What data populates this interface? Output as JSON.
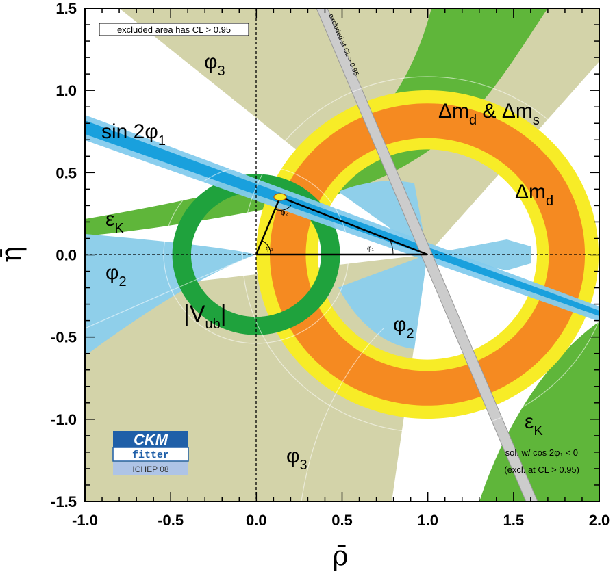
{
  "chart_data": {
    "type": "contour",
    "xlabel": "ρ̄",
    "ylabel": "η̄",
    "xlim": [
      -1.0,
      2.0
    ],
    "ylim": [
      -1.5,
      1.5
    ],
    "xticks": [
      "-1.0",
      "-0.5",
      "0.0",
      "0.5",
      "1.0",
      "1.5",
      "2.0"
    ],
    "yticks": [
      "-1.5",
      "-1.0",
      "-0.5",
      "0.0",
      "0.5",
      "1.0",
      "1.5"
    ],
    "legend_note": "excluded area has CL > 0.95",
    "logo": {
      "line1": "CKM",
      "line2": "fitter",
      "line3": "ICHEP 08"
    },
    "annotations": {
      "sol_note_1": "sol. w/ cos 2φ₁ < 0",
      "sol_note_2": "(excl. at CL > 0.95)",
      "excluded_band": "excluded at CL > 0.95"
    },
    "labels": {
      "phi3_top": {
        "main": "φ",
        "sub": "3"
      },
      "phi3_bottom": {
        "main": "φ",
        "sub": "3"
      },
      "phi2_left": {
        "main": "φ",
        "sub": "2"
      },
      "phi2_right": {
        "main": "φ",
        "sub": "2"
      },
      "sin2phi1": {
        "main": "sin 2φ",
        "sub": "1"
      },
      "epsK_left": {
        "main": "ε",
        "sub": "K"
      },
      "epsK_right": {
        "main": "ε",
        "sub": "K"
      },
      "vub": {
        "main": "|V",
        "sub": "ub",
        "tail": "|"
      },
      "dmd_dms": {
        "p1": "Δm",
        "s1": "d",
        "p2": " & Δm",
        "s2": "s"
      },
      "dmd": {
        "main": "Δm",
        "sub": "d"
      }
    },
    "apex": {
      "rho": 0.14,
      "eta": 0.35
    },
    "series": [
      {
        "name": "Δm_s/Δm_d",
        "shape": "annulus",
        "center": [
          1.0,
          0.0
        ],
        "r_inner_68": 0.71,
        "r_outer_68": 0.92,
        "r_inner_95": 0.64,
        "r_outer_95": 1.0
      },
      {
        "name": "|V_ub|",
        "shape": "annulus",
        "center": [
          0.0,
          0.0
        ],
        "r_inner_68": 0.38,
        "r_outer_68": 0.49
      },
      {
        "name": "sin 2φ1",
        "shape": "band",
        "through": [
          1.0,
          0.0
        ],
        "slope": -0.36
      },
      {
        "name": "εK",
        "shape": "hyperbolic-band"
      },
      {
        "name": "φ2",
        "shape": "wedges"
      },
      {
        "name": "φ3",
        "shape": "wedges"
      }
    ],
    "colors": {
      "phi3": "#d3d3a9",
      "dmd": "#f7ec27",
      "dms": "#f58a21",
      "vub": "#1fa23d",
      "epsK": "#5fb63a",
      "phi2": "#8fcfea",
      "sin2b": "#19a0dd",
      "sin2b_light": "#84cbed",
      "excluded_band": "#cccccc"
    }
  }
}
